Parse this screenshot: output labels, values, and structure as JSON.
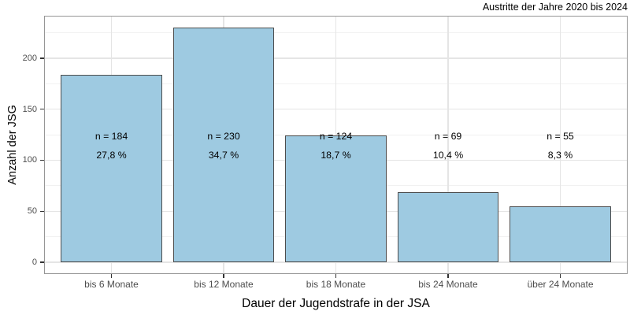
{
  "chart_data": {
    "type": "bar",
    "title": "Austritte der Jahre 2020 bis 2024",
    "xlabel": "Dauer der Jugendstrafe in der JSA",
    "ylabel": "Anzahl der JSG",
    "categories": [
      "bis 6 Monate",
      "bis 12 Monate",
      "bis 18 Monate",
      "bis 24 Monate",
      "über 24 Monate"
    ],
    "values": [
      184,
      230,
      124,
      69,
      55
    ],
    "count_labels": [
      "n = 184",
      "n = 230",
      "n = 124",
      "n = 69",
      "n = 55"
    ],
    "percent_labels": [
      "27,8 %",
      "34,7 %",
      "18,7 %",
      "10,4 %",
      "8,3 %"
    ],
    "yticks": [
      0,
      50,
      100,
      150,
      200
    ],
    "yminor": [
      25,
      75,
      125,
      175,
      225
    ],
    "ylim": [
      -11.5,
      241.5
    ],
    "grid": true,
    "legend": "none",
    "colors": {
      "bar_fill": "#9ECAE1",
      "bar_border": "#4D4D4D",
      "panel_border": "#969696",
      "grid_major": "#E5E5E5",
      "grid_minor": "#F1F1F1",
      "axis_text": "#4D4D4D",
      "title_text": "#000000",
      "panel_bg": "#FFFFFF"
    }
  }
}
